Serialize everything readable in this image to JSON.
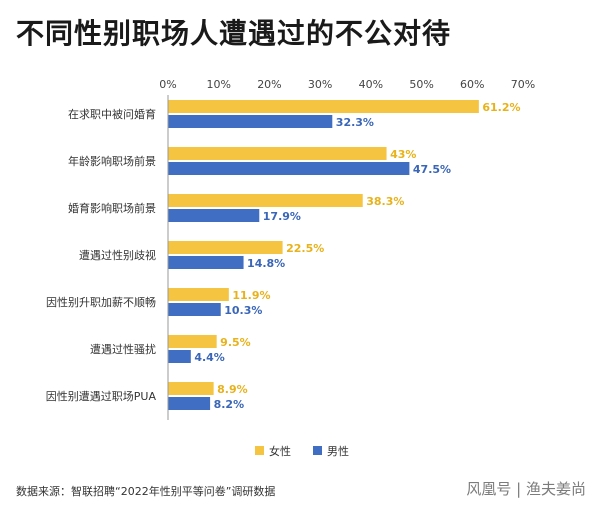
{
  "title": "不同性别职场人遭遇过的不公对待",
  "source": "数据来源：智联招聘“2022年性别平等问卷”调研数据",
  "watermark": "风凰号 | 渔夫姜尚",
  "colors": {
    "female": "#f5c542",
    "male": "#3f6ec2",
    "female_label": "#e8b21b",
    "male_label": "#3a66b8",
    "axis": "#999999"
  },
  "chart_data": {
    "type": "bar",
    "orientation": "horizontal",
    "title": "不同性别职场人遭遇过的不公对待",
    "categories": [
      "在求职中被问婚育",
      "年龄影响职场前景",
      "婚育影响职场前景",
      "遭遇过性别歧视",
      "因性别升职加薪不顺畅",
      "遭遇过性骚扰",
      "因性别遭遇过职场PUA"
    ],
    "series": [
      {
        "name": "女性",
        "values": [
          61.2,
          43,
          38.3,
          22.5,
          11.9,
          9.5,
          8.9
        ],
        "labels": [
          "61.2%",
          "43%",
          "38.3%",
          "22.5%",
          "11.9%",
          "9.5%",
          "8.9%"
        ]
      },
      {
        "name": "男性",
        "values": [
          32.3,
          47.5,
          17.9,
          14.8,
          10.3,
          4.4,
          8.2
        ],
        "labels": [
          "32.3%",
          "47.5%",
          "17.9%",
          "14.8%",
          "10.3%",
          "4.4%",
          "8.2%"
        ]
      }
    ],
    "xlim": [
      0,
      70
    ],
    "ticks": [
      "0%",
      "10%",
      "20%",
      "30%",
      "40%",
      "50%",
      "60%",
      "70%"
    ],
    "tick_values": [
      0,
      10,
      20,
      30,
      40,
      50,
      60,
      70
    ],
    "grid": false,
    "legend": "bottom-center"
  }
}
